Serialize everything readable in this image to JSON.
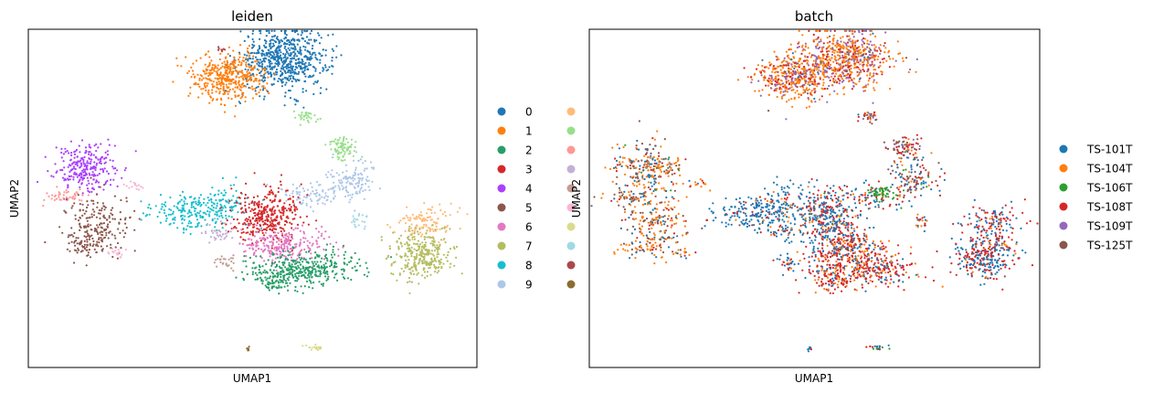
{
  "figure": {
    "panels": [
      {
        "id": "leiden",
        "title": "leiden",
        "xlabel": "UMAP1",
        "ylabel": "UMAP2",
        "legend": {
          "placement": "right",
          "columns": 2,
          "entries": [
            {
              "label": "0",
              "color": "#1f77b4"
            },
            {
              "label": "1",
              "color": "#ff7f0e"
            },
            {
              "label": "2",
              "color": "#279e68"
            },
            {
              "label": "3",
              "color": "#d62728"
            },
            {
              "label": "4",
              "color": "#aa40fc"
            },
            {
              "label": "5",
              "color": "#8c564b"
            },
            {
              "label": "6",
              "color": "#e377c2"
            },
            {
              "label": "7",
              "color": "#b5bd61"
            },
            {
              "label": "8",
              "color": "#17becf"
            },
            {
              "label": "9",
              "color": "#aec7e8"
            },
            {
              "label": "",
              "color": "#ffbb78"
            },
            {
              "label": "",
              "color": "#98df8a"
            },
            {
              "label": "",
              "color": "#ff9896"
            },
            {
              "label": "",
              "color": "#c5b0d5"
            },
            {
              "label": "",
              "color": "#c49c94"
            },
            {
              "label": "",
              "color": "#f7b6d2"
            },
            {
              "label": "",
              "color": "#dbdb8d"
            },
            {
              "label": "",
              "color": "#9edae5"
            },
            {
              "label": "",
              "color": "#ad494a"
            },
            {
              "label": "",
              "color": "#8c6d31"
            }
          ]
        }
      },
      {
        "id": "batch",
        "title": "batch",
        "xlabel": "UMAP1",
        "ylabel": "UMAP2",
        "legend": {
          "placement": "right",
          "columns": 1,
          "entries": [
            {
              "label": "TS-101T",
              "color": "#1f77b4"
            },
            {
              "label": "TS-104T",
              "color": "#ff7f0e"
            },
            {
              "label": "TS-106T",
              "color": "#2ca02c"
            },
            {
              "label": "TS-108T",
              "color": "#d62728"
            },
            {
              "label": "TS-109T",
              "color": "#9467bd"
            },
            {
              "label": "TS-125T",
              "color": "#8c564b"
            }
          ]
        }
      }
    ]
  },
  "chart_data": [
    {
      "type": "scatter",
      "title": "leiden",
      "xlabel": "UMAP1",
      "ylabel": "UMAP2",
      "xlim": [
        0,
        100
      ],
      "ylim": [
        0,
        100
      ],
      "grid": false,
      "ticks": false,
      "legend": "right",
      "color_by": "leiden",
      "clusters": [
        {
          "cat": 0,
          "cx": 57,
          "cy": 91,
          "sx": 5.0,
          "sy": 4.5,
          "n": 650
        },
        {
          "cat": 1,
          "cx": 45,
          "cy": 86,
          "sx": 4.0,
          "sy": 3.5,
          "n": 420
        },
        {
          "cat": 11,
          "cx": 62,
          "cy": 74,
          "sx": 1.2,
          "sy": 1.0,
          "n": 30
        },
        {
          "cat": 11,
          "cx": 70,
          "cy": 65,
          "sx": 1.8,
          "sy": 1.8,
          "n": 80
        },
        {
          "cat": 9,
          "cx": 72,
          "cy": 56,
          "sx": 2.8,
          "sy": 3.0,
          "n": 120
        },
        {
          "cat": 9,
          "cx": 64,
          "cy": 51,
          "sx": 4.0,
          "sy": 1.8,
          "n": 90
        },
        {
          "cat": 4,
          "cx": 13,
          "cy": 59,
          "sx": 3.5,
          "sy": 3.5,
          "n": 260
        },
        {
          "cat": 12,
          "cx": 8,
          "cy": 50.5,
          "sx": 2.5,
          "sy": 1.0,
          "n": 45
        },
        {
          "cat": 15,
          "cx": 24,
          "cy": 54,
          "sx": 1.5,
          "sy": 0.8,
          "n": 15
        },
        {
          "cat": 5,
          "cx": 15,
          "cy": 43,
          "sx": 3.5,
          "sy": 4.0,
          "n": 180
        },
        {
          "cat": 5,
          "cx": 13,
          "cy": 36,
          "sx": 2.5,
          "sy": 2.0,
          "n": 70
        },
        {
          "cat": 15,
          "cx": 20,
          "cy": 34,
          "sx": 1.2,
          "sy": 0.8,
          "n": 15
        },
        {
          "cat": 8,
          "cx": 37,
          "cy": 46,
          "sx": 5.0,
          "sy": 2.5,
          "n": 200
        },
        {
          "cat": 8,
          "cx": 43,
          "cy": 49,
          "sx": 2.5,
          "sy": 3.0,
          "n": 60
        },
        {
          "cat": 3,
          "cx": 53,
          "cy": 45,
          "sx": 3.8,
          "sy": 4.0,
          "n": 350
        },
        {
          "cat": 13,
          "cx": 43,
          "cy": 40,
          "sx": 1.8,
          "sy": 1.5,
          "n": 40
        },
        {
          "cat": 14,
          "cx": 44,
          "cy": 31,
          "sx": 1.2,
          "sy": 1.2,
          "n": 25
        },
        {
          "cat": 6,
          "cx": 57,
          "cy": 36,
          "sx": 4.5,
          "sy": 2.5,
          "n": 250
        },
        {
          "cat": 2,
          "cx": 61,
          "cy": 29,
          "sx": 6.5,
          "sy": 2.5,
          "n": 380
        },
        {
          "cat": 2,
          "cx": 54,
          "cy": 25,
          "sx": 2.0,
          "sy": 1.5,
          "n": 50
        },
        {
          "cat": 17,
          "cx": 74,
          "cy": 43,
          "sx": 1.0,
          "sy": 1.5,
          "n": 20
        },
        {
          "cat": 10,
          "cx": 89,
          "cy": 43,
          "sx": 3.5,
          "sy": 2.5,
          "n": 120
        },
        {
          "cat": 7,
          "cx": 88,
          "cy": 33,
          "sx": 3.5,
          "sy": 3.5,
          "n": 300
        },
        {
          "cat": 16,
          "cx": 64,
          "cy": 6,
          "sx": 1.2,
          "sy": 0.4,
          "n": 20
        },
        {
          "cat": 19,
          "cx": 49,
          "cy": 5.5,
          "sx": 0.3,
          "sy": 0.4,
          "n": 8
        },
        {
          "cat": 18,
          "cx": 43,
          "cy": 94,
          "sx": 0.5,
          "sy": 0.5,
          "n": 8
        }
      ]
    },
    {
      "type": "scatter",
      "title": "batch",
      "xlabel": "UMAP1",
      "ylabel": "UMAP2",
      "xlim": [
        0,
        100
      ],
      "ylim": [
        0,
        100
      ],
      "grid": false,
      "ticks": false,
      "legend": "right",
      "color_by": "batch",
      "clusters": [
        {
          "cx": 57,
          "cy": 91,
          "sx": 5.0,
          "sy": 4.5,
          "n": 650,
          "w": [
            0.02,
            0.55,
            0.0,
            0.18,
            0.22,
            0.03
          ]
        },
        {
          "cx": 45,
          "cy": 86,
          "sx": 4.0,
          "sy": 3.5,
          "n": 420,
          "w": [
            0.02,
            0.55,
            0.0,
            0.25,
            0.15,
            0.03
          ]
        },
        {
          "cx": 62,
          "cy": 74,
          "sx": 1.2,
          "sy": 1.0,
          "n": 30,
          "w": [
            0.1,
            0.2,
            0.0,
            0.3,
            0.1,
            0.3
          ]
        },
        {
          "cx": 70,
          "cy": 65,
          "sx": 1.8,
          "sy": 1.8,
          "n": 80,
          "w": [
            0.1,
            0.1,
            0.0,
            0.3,
            0.1,
            0.4
          ]
        },
        {
          "cx": 72,
          "cy": 56,
          "sx": 2.8,
          "sy": 3.0,
          "n": 120,
          "w": [
            0.4,
            0.1,
            0.05,
            0.2,
            0.0,
            0.25
          ]
        },
        {
          "cx": 64,
          "cy": 51,
          "sx": 4.0,
          "sy": 1.8,
          "n": 90,
          "w": [
            0.35,
            0.1,
            0.15,
            0.3,
            0.0,
            0.1
          ]
        },
        {
          "cx": 13,
          "cy": 59,
          "sx": 3.5,
          "sy": 3.5,
          "n": 260,
          "w": [
            0.25,
            0.4,
            0.02,
            0.08,
            0.0,
            0.25
          ]
        },
        {
          "cx": 8,
          "cy": 50.5,
          "sx": 2.5,
          "sy": 1.0,
          "n": 45,
          "w": [
            0.3,
            0.2,
            0.0,
            0.1,
            0.0,
            0.4
          ]
        },
        {
          "cx": 24,
          "cy": 54,
          "sx": 1.5,
          "sy": 0.8,
          "n": 15,
          "w": [
            0.2,
            0.6,
            0.0,
            0.1,
            0.0,
            0.1
          ]
        },
        {
          "cx": 15,
          "cy": 43,
          "sx": 3.5,
          "sy": 4.0,
          "n": 180,
          "w": [
            0.15,
            0.45,
            0.02,
            0.1,
            0.0,
            0.28
          ]
        },
        {
          "cx": 13,
          "cy": 36,
          "sx": 2.5,
          "sy": 2.0,
          "n": 70,
          "w": [
            0.2,
            0.5,
            0.0,
            0.1,
            0.0,
            0.2
          ]
        },
        {
          "cx": 20,
          "cy": 34,
          "sx": 1.2,
          "sy": 0.8,
          "n": 15,
          "w": [
            0.2,
            0.5,
            0.0,
            0.1,
            0.0,
            0.2
          ]
        },
        {
          "cx": 37,
          "cy": 46,
          "sx": 5.0,
          "sy": 2.5,
          "n": 200,
          "w": [
            0.8,
            0.05,
            0.0,
            0.12,
            0.0,
            0.03
          ]
        },
        {
          "cx": 43,
          "cy": 49,
          "sx": 2.5,
          "sy": 3.0,
          "n": 60,
          "w": [
            0.7,
            0.1,
            0.0,
            0.2,
            0.0,
            0.0
          ]
        },
        {
          "cx": 53,
          "cy": 45,
          "sx": 3.8,
          "sy": 4.0,
          "n": 350,
          "w": [
            0.55,
            0.1,
            0.0,
            0.33,
            0.0,
            0.02
          ]
        },
        {
          "cx": 43,
          "cy": 40,
          "sx": 1.8,
          "sy": 1.5,
          "n": 40,
          "w": [
            0.5,
            0.2,
            0.0,
            0.3,
            0.0,
            0.0
          ]
        },
        {
          "cx": 44,
          "cy": 31,
          "sx": 1.2,
          "sy": 1.2,
          "n": 25,
          "w": [
            0.6,
            0.1,
            0.0,
            0.3,
            0.0,
            0.0
          ]
        },
        {
          "cx": 57,
          "cy": 36,
          "sx": 4.5,
          "sy": 2.5,
          "n": 250,
          "w": [
            0.3,
            0.15,
            0.0,
            0.52,
            0.0,
            0.03
          ]
        },
        {
          "cx": 61,
          "cy": 29,
          "sx": 6.5,
          "sy": 2.5,
          "n": 380,
          "w": [
            0.2,
            0.2,
            0.0,
            0.55,
            0.0,
            0.05
          ]
        },
        {
          "cx": 54,
          "cy": 25,
          "sx": 2.0,
          "sy": 1.5,
          "n": 50,
          "w": [
            0.1,
            0.3,
            0.0,
            0.6,
            0.0,
            0.0
          ]
        },
        {
          "cx": 74,
          "cy": 43,
          "sx": 1.0,
          "sy": 1.5,
          "n": 20,
          "w": [
            0.3,
            0.3,
            0.0,
            0.4,
            0.0,
            0.0
          ]
        },
        {
          "cx": 89,
          "cy": 43,
          "sx": 3.5,
          "sy": 2.5,
          "n": 120,
          "w": [
            0.35,
            0.1,
            0.0,
            0.5,
            0.0,
            0.05
          ]
        },
        {
          "cx": 88,
          "cy": 33,
          "sx": 3.5,
          "sy": 3.5,
          "n": 300,
          "w": [
            0.4,
            0.1,
            0.0,
            0.48,
            0.0,
            0.02
          ]
        },
        {
          "cx": 64,
          "cy": 6,
          "sx": 1.2,
          "sy": 0.4,
          "n": 20,
          "w": [
            0.3,
            0.0,
            0.2,
            0.5,
            0.0,
            0.0
          ]
        },
        {
          "cx": 49,
          "cy": 5.5,
          "sx": 0.3,
          "sy": 0.4,
          "n": 8,
          "w": [
            0.5,
            0.0,
            0.0,
            0.5,
            0.0,
            0.0
          ]
        },
        {
          "cx": 65,
          "cy": 52,
          "sx": 1.2,
          "sy": 0.8,
          "n": 30,
          "w": [
            0.0,
            0.0,
            1.0,
            0.0,
            0.0,
            0.0
          ]
        }
      ]
    }
  ]
}
